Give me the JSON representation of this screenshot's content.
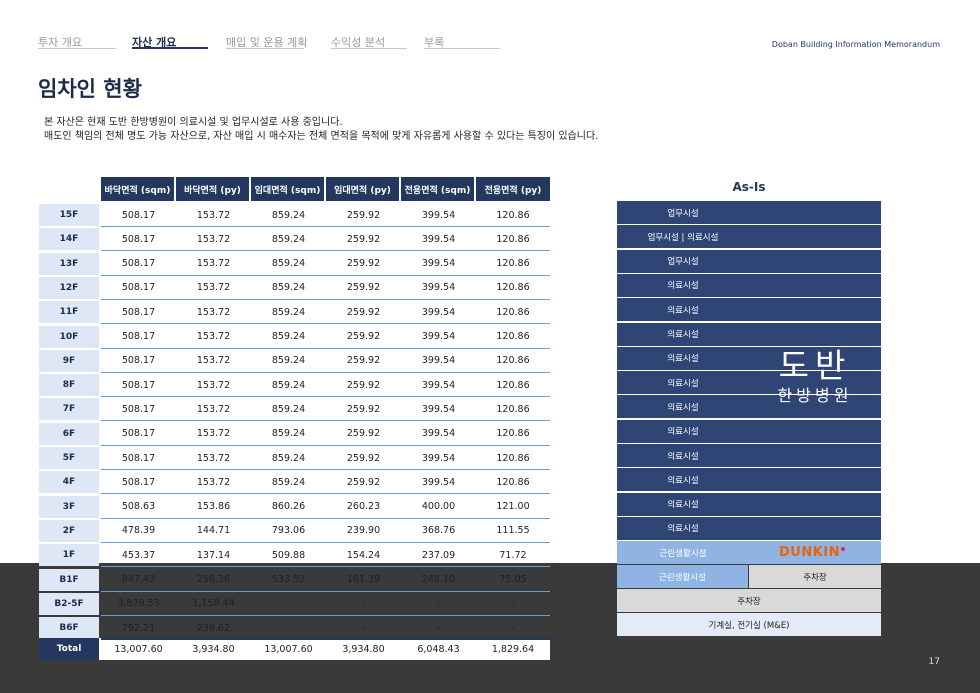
{
  "nav": {
    "tabs": [
      {
        "label": "투자 개요",
        "active": false
      },
      {
        "label": "자산 개요",
        "active": true
      },
      {
        "label": "매입 및 운용 계획",
        "active": false
      },
      {
        "label": "수익성 분석",
        "active": false
      },
      {
        "label": "부록",
        "active": false
      }
    ],
    "memo_title": "Doban Building Information Memorandum"
  },
  "page": {
    "title": "임차인 현황",
    "intro_line1": "본 자산은 현재 도반 한방병원이 의료시설 및 업무시설로 사용 중입니다.",
    "intro_line2": "매도인 책임의 전체 명도 가능 자산으로, 자산 매입 시 매수자는 전체 면적을 목적에 맞게 자유롭게 사용할 수 있다는 특징이 있습니다.",
    "page_number": "17"
  },
  "table": {
    "headers": [
      "바닥면적 (sqm)",
      "바닥면적 (py)",
      "임대면적 (sqm)",
      "임대면적 (py)",
      "전용면적 (sqm)",
      "전용면적 (py)"
    ],
    "rows": [
      {
        "floor": "15F",
        "values": [
          "508.17",
          "153.72",
          "859.24",
          "259.92",
          "399.54",
          "120.86"
        ]
      },
      {
        "floor": "14F",
        "values": [
          "508.17",
          "153.72",
          "859.24",
          "259.92",
          "399.54",
          "120.86"
        ]
      },
      {
        "floor": "13F",
        "values": [
          "508.17",
          "153.72",
          "859.24",
          "259.92",
          "399.54",
          "120.86"
        ]
      },
      {
        "floor": "12F",
        "values": [
          "508.17",
          "153.72",
          "859.24",
          "259.92",
          "399.54",
          "120.86"
        ]
      },
      {
        "floor": "11F",
        "values": [
          "508.17",
          "153.72",
          "859.24",
          "259.92",
          "399.54",
          "120.86"
        ]
      },
      {
        "floor": "10F",
        "values": [
          "508.17",
          "153.72",
          "859.24",
          "259.92",
          "399.54",
          "120.86"
        ]
      },
      {
        "floor": "9F",
        "values": [
          "508.17",
          "153.72",
          "859.24",
          "259.92",
          "399.54",
          "120.86"
        ]
      },
      {
        "floor": "8F",
        "values": [
          "508.17",
          "153.72",
          "859.24",
          "259.92",
          "399.54",
          "120.86"
        ]
      },
      {
        "floor": "7F",
        "values": [
          "508.17",
          "153.72",
          "859.24",
          "259.92",
          "399.54",
          "120.86"
        ]
      },
      {
        "floor": "6F",
        "values": [
          "508.17",
          "153.72",
          "859.24",
          "259.92",
          "399.54",
          "120.86"
        ]
      },
      {
        "floor": "5F",
        "values": [
          "508.17",
          "153.72",
          "859.24",
          "259.92",
          "399.54",
          "120.86"
        ]
      },
      {
        "floor": "4F",
        "values": [
          "508.17",
          "153.72",
          "859.24",
          "259.92",
          "399.54",
          "120.86"
        ]
      },
      {
        "floor": "3F",
        "values": [
          "508.63",
          "153.86",
          "860.26",
          "260.23",
          "400.00",
          "121.00"
        ]
      },
      {
        "floor": "2F",
        "values": [
          "478.39",
          "144.71",
          "793.06",
          "239.90",
          "368.76",
          "111.55"
        ]
      },
      {
        "floor": "1F",
        "values": [
          "453.37",
          "137.14",
          "509.88",
          "154.24",
          "237.09",
          "71.72"
        ]
      },
      {
        "floor": "B1F",
        "values": [
          "847.43",
          "256.36",
          "533.52",
          "161.39",
          "248.10",
          "75.05"
        ]
      },
      {
        "floor": "B2-5F",
        "values": [
          "3,829.53",
          "1,158.44",
          "-",
          "-",
          "-",
          "-"
        ]
      },
      {
        "floor": "B6F",
        "values": [
          "792.21",
          "239.62",
          "-",
          "-",
          "-",
          "-"
        ]
      }
    ],
    "total": {
      "label": "Total",
      "values": [
        "13,007.60",
        "3,934.80",
        "13,007.60",
        "3,934.80",
        "6,048.43",
        "1,829.64"
      ]
    }
  },
  "building": {
    "title": "As-Is",
    "floors": [
      {
        "label": "업무시설",
        "type": "tenant"
      },
      {
        "label": "업무시설 | 의료시설",
        "type": "tenant"
      },
      {
        "label": "업무시설",
        "type": "tenant"
      },
      {
        "label": "의료시설",
        "type": "tenant"
      },
      {
        "label": "의료시설",
        "type": "tenant"
      },
      {
        "label": "의료시설",
        "type": "tenant"
      },
      {
        "label": "의료시설",
        "type": "tenant"
      },
      {
        "label": "의료시설",
        "type": "tenant"
      },
      {
        "label": "의료시설",
        "type": "tenant"
      },
      {
        "label": "의료시설",
        "type": "tenant"
      },
      {
        "label": "의료시설",
        "type": "tenant"
      },
      {
        "label": "의료시설",
        "type": "tenant"
      },
      {
        "label": "의료시설",
        "type": "tenant"
      },
      {
        "label": "의료시설",
        "type": "tenant"
      }
    ],
    "hospital_name": "도반",
    "hospital_sub": "한방병원",
    "ground_floor": {
      "label": "근린생활시설",
      "brand": "DUNKIN"
    },
    "b1": {
      "left_label": "근린생활시설",
      "right_label": "주차장"
    },
    "b2": {
      "label": "주차장"
    },
    "b6": {
      "label": "기계실, 전기실 (M&E)"
    },
    "colors": {
      "tenant": "#2f4576",
      "retail": "#8fb4e3",
      "parking": "#d9d9d9",
      "mechanical": "#e3ebf6",
      "navy": "#23375f"
    }
  }
}
